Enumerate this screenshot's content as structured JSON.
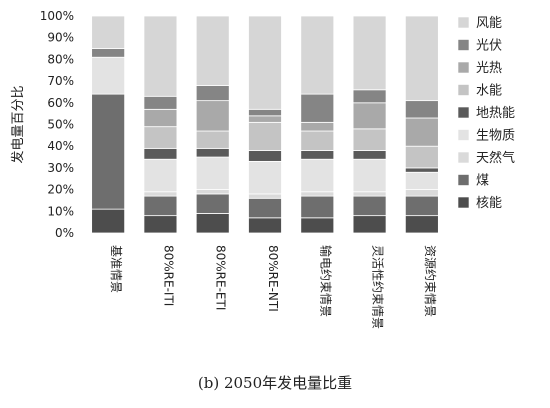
{
  "chart_data": {
    "type": "bar",
    "stacked": true,
    "ylabel": "发电量百分比",
    "ylim": [
      0,
      100
    ],
    "yticks": [
      "0%",
      "10%",
      "20%",
      "30%",
      "40%",
      "50%",
      "60%",
      "70%",
      "80%",
      "90%",
      "100%"
    ],
    "categories": [
      "基准情景",
      "80%RE-ITI",
      "80%RE-ETI",
      "80%RE-NTI",
      "输电约束情景",
      "灵活性约束情景",
      "资源约束情景"
    ],
    "series": [
      {
        "name": "核能",
        "color": "#4d4d4d",
        "values": [
          11,
          8,
          9,
          7,
          7,
          8,
          8
        ]
      },
      {
        "name": "煤",
        "color": "#6e6e6e",
        "values": [
          53,
          9,
          9,
          9,
          10,
          9,
          9
        ]
      },
      {
        "name": "天然气",
        "color": "#dadada",
        "values": [
          0,
          2,
          2,
          2,
          2,
          2,
          3
        ]
      },
      {
        "name": "生物质",
        "color": "#e3e3e3",
        "values": [
          17,
          15,
          15,
          15,
          15,
          15,
          8
        ]
      },
      {
        "name": "地热能",
        "color": "#5a5a5a",
        "values": [
          0,
          5,
          4,
          5,
          4,
          4,
          2
        ]
      },
      {
        "name": "水能",
        "color": "#c4c4c4",
        "values": [
          0,
          10,
          8,
          13,
          9,
          10,
          10
        ]
      },
      {
        "name": "光热",
        "color": "#a9a9a9",
        "values": [
          0,
          8,
          14,
          3,
          4,
          12,
          13
        ]
      },
      {
        "name": "光伏",
        "color": "#858585",
        "values": [
          4,
          6,
          7,
          3,
          13,
          6,
          8
        ]
      },
      {
        "name": "风能",
        "color": "#d6d6d6",
        "values": [
          15,
          37,
          32,
          43,
          36,
          34,
          39
        ]
      }
    ],
    "legend_position": "right",
    "grid": false
  },
  "caption": "(b)  2050年发电量比重"
}
